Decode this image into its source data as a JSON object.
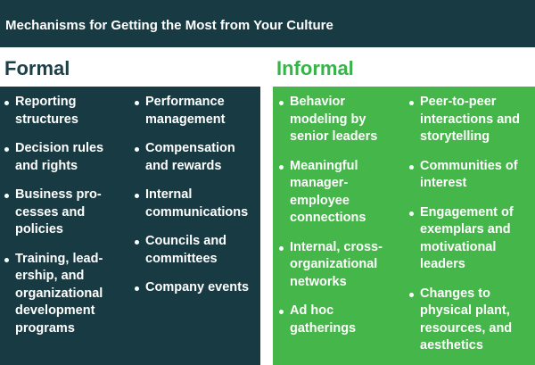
{
  "header": {
    "title": "Mechanisms for Getting the Most from Your Culture"
  },
  "formal": {
    "title": "Formal",
    "col1": [
      "Reporting structures",
      "Decision rules and rights",
      "Business pro-cesses and policies",
      "Training, lead-ership, and organizational development programs"
    ],
    "col2": [
      "Performance management",
      "Compensation and rewards",
      "Internal communications",
      "Councils and committees",
      "Company events"
    ]
  },
  "informal": {
    "title": "Informal",
    "col1": [
      "Behavior modeling by senior leaders",
      "Meaningful manager-employee connections",
      "Internal, cross-organizational networks",
      "Ad hoc gatherings"
    ],
    "col2": [
      "Peer-to-peer interactions and storytelling",
      "Communities of interest",
      "Engagement of exemplars and motivational leaders",
      "Changes to physical plant, resources, and aesthetics"
    ]
  },
  "colors": {
    "dark_teal": "#183a42",
    "green": "#45b649",
    "green_text": "#37b34a"
  }
}
